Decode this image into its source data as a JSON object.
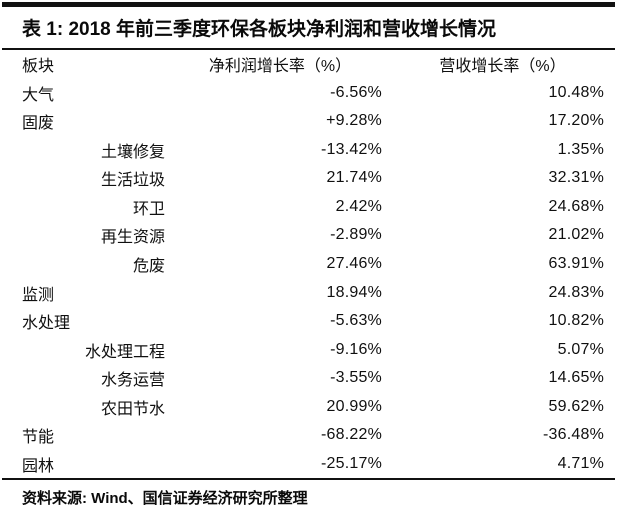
{
  "title": "表 1: 2018 年前三季度环保各板块净利润和营收增长情况",
  "table": {
    "headers": [
      "板块",
      "净利润增长率（%）",
      "营收增长率（%）"
    ],
    "rows": [
      {
        "sector": "大气",
        "level": 0,
        "profit": "-6.56%",
        "revenue": "10.48%"
      },
      {
        "sector": "固废",
        "level": 0,
        "profit": "+9.28%",
        "revenue": "17.20%"
      },
      {
        "sector": "土壤修复",
        "level": 1,
        "profit": "-13.42%",
        "revenue": "1.35%"
      },
      {
        "sector": "生活垃圾",
        "level": 1,
        "profit": "21.74%",
        "revenue": "32.31%"
      },
      {
        "sector": "环卫",
        "level": 1,
        "profit": "2.42%",
        "revenue": "24.68%"
      },
      {
        "sector": "再生资源",
        "level": 1,
        "profit": "-2.89%",
        "revenue": "21.02%"
      },
      {
        "sector": "危废",
        "level": 1,
        "profit": "27.46%",
        "revenue": "63.91%"
      },
      {
        "sector": "监测",
        "level": 0,
        "profit": "18.94%",
        "revenue": "24.83%"
      },
      {
        "sector": "水处理",
        "level": 0,
        "profit": "-5.63%",
        "revenue": "10.82%"
      },
      {
        "sector": "水处理工程",
        "level": 1,
        "profit": "-9.16%",
        "revenue": "5.07%"
      },
      {
        "sector": "水务运营",
        "level": 1,
        "profit": "-3.55%",
        "revenue": "14.65%"
      },
      {
        "sector": "农田节水",
        "level": 1,
        "profit": "20.99%",
        "revenue": "59.62%"
      },
      {
        "sector": "节能",
        "level": 0,
        "profit": "-68.22%",
        "revenue": "-36.48%"
      },
      {
        "sector": "园林",
        "level": 0,
        "profit": "-25.17%",
        "revenue": "4.71%"
      }
    ]
  },
  "footer": {
    "source_note": "资料来源: Wind、国信证券经济研究所整理"
  },
  "colors": {
    "background": "#ffffff",
    "text": "#101010",
    "rule": "#111111"
  }
}
